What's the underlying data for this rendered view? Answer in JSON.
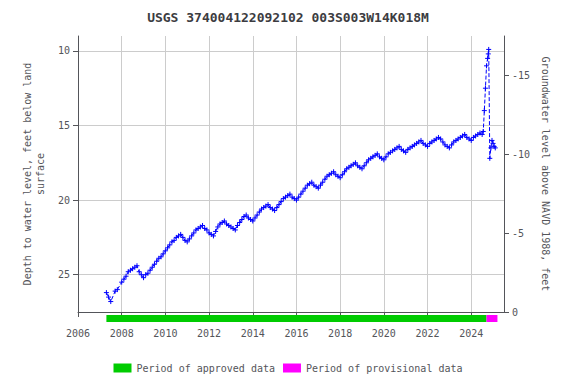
{
  "chart_data": {
    "type": "line",
    "title": "USGS 374004122092102 003S003W14K018M",
    "ylabel": "Depth to water level, feet below land\nsurface",
    "y2label": "Groundwater level above NAVD 1988, feet",
    "xlim": [
      2006,
      2025.5
    ],
    "xticks": [
      2006,
      2008,
      2010,
      2012,
      2014,
      2016,
      2018,
      2020,
      2022,
      2024
    ],
    "ylim": [
      27.5,
      9.0
    ],
    "yticks": [
      10,
      15,
      20,
      25
    ],
    "y2lim": [
      0,
      -17.5
    ],
    "y2ticks": [
      0,
      -5,
      -10,
      -15
    ],
    "grid": true,
    "legend": "bottom",
    "x": [
      2007.3,
      2007.4,
      2007.5,
      2007.7,
      2007.8,
      2008.0,
      2008.1,
      2008.2,
      2008.3,
      2008.4,
      2008.5,
      2008.6,
      2008.7,
      2008.8,
      2008.9,
      2009.0,
      2009.1,
      2009.2,
      2009.3,
      2009.4,
      2009.5,
      2009.6,
      2009.7,
      2009.8,
      2009.9,
      2010.0,
      2010.1,
      2010.2,
      2010.3,
      2010.4,
      2010.5,
      2010.6,
      2010.7,
      2010.8,
      2010.9,
      2011.0,
      2011.1,
      2011.2,
      2011.3,
      2011.4,
      2011.5,
      2011.6,
      2011.7,
      2011.8,
      2011.9,
      2012.0,
      2012.1,
      2012.2,
      2012.3,
      2012.4,
      2012.5,
      2012.6,
      2012.7,
      2012.8,
      2012.9,
      2013.0,
      2013.1,
      2013.2,
      2013.3,
      2013.4,
      2013.5,
      2013.6,
      2013.7,
      2013.8,
      2013.9,
      2014.0,
      2014.1,
      2014.2,
      2014.3,
      2014.4,
      2014.5,
      2014.6,
      2014.7,
      2014.8,
      2014.9,
      2015.0,
      2015.1,
      2015.2,
      2015.3,
      2015.4,
      2015.5,
      2015.6,
      2015.7,
      2015.8,
      2015.9,
      2016.0,
      2016.1,
      2016.2,
      2016.3,
      2016.4,
      2016.5,
      2016.6,
      2016.7,
      2016.8,
      2016.9,
      2017.0,
      2017.1,
      2017.2,
      2017.3,
      2017.4,
      2017.5,
      2017.6,
      2017.7,
      2017.8,
      2017.9,
      2018.0,
      2018.1,
      2018.2,
      2018.3,
      2018.4,
      2018.5,
      2018.6,
      2018.7,
      2018.8,
      2018.9,
      2019.0,
      2019.1,
      2019.2,
      2019.3,
      2019.4,
      2019.5,
      2019.6,
      2019.7,
      2019.8,
      2019.9,
      2020.0,
      2020.1,
      2020.2,
      2020.3,
      2020.4,
      2020.5,
      2020.6,
      2020.7,
      2020.8,
      2020.9,
      2021.0,
      2021.1,
      2021.2,
      2021.3,
      2021.4,
      2021.5,
      2021.6,
      2021.7,
      2021.8,
      2021.9,
      2022.0,
      2022.1,
      2022.2,
      2022.3,
      2022.4,
      2022.5,
      2022.6,
      2022.7,
      2022.8,
      2022.9,
      2023.0,
      2023.1,
      2023.2,
      2023.3,
      2023.4,
      2023.5,
      2023.6,
      2023.7,
      2023.8,
      2023.9,
      2024.0,
      2024.1,
      2024.2,
      2024.3,
      2024.4,
      2024.5,
      2024.55,
      2024.6,
      2024.65,
      2024.7,
      2024.75,
      2024.78,
      2024.8,
      2024.85,
      2024.9,
      2024.95,
      2025.0,
      2025.05,
      2025.1
    ],
    "series": [
      {
        "color": "#0000ff",
        "marker": "plus",
        "line_style": "dashed",
        "values": [
          26.2,
          26.5,
          26.8,
          26.1,
          26.0,
          25.5,
          25.3,
          25.1,
          24.8,
          24.7,
          24.6,
          24.5,
          24.4,
          24.8,
          25.0,
          25.2,
          25.0,
          24.9,
          24.7,
          24.5,
          24.3,
          24.1,
          23.9,
          23.8,
          23.6,
          23.4,
          23.2,
          23.0,
          22.8,
          22.7,
          22.5,
          22.4,
          22.3,
          22.5,
          22.7,
          22.8,
          22.6,
          22.4,
          22.2,
          22.0,
          21.9,
          21.8,
          21.7,
          21.9,
          22.0,
          22.2,
          22.3,
          22.4,
          22.1,
          21.8,
          21.6,
          21.5,
          21.4,
          21.6,
          21.7,
          21.8,
          21.9,
          22.0,
          21.7,
          21.5,
          21.3,
          21.1,
          21.0,
          21.2,
          21.3,
          21.4,
          21.2,
          21.0,
          20.8,
          20.6,
          20.5,
          20.4,
          20.3,
          20.5,
          20.6,
          20.7,
          20.5,
          20.3,
          20.1,
          19.9,
          19.8,
          19.7,
          19.6,
          19.8,
          19.9,
          20.0,
          19.8,
          19.6,
          19.4,
          19.2,
          19.0,
          18.9,
          18.8,
          19.0,
          19.1,
          19.2,
          19.0,
          18.8,
          18.6,
          18.4,
          18.3,
          18.2,
          18.1,
          18.3,
          18.4,
          18.5,
          18.3,
          18.1,
          17.9,
          17.8,
          17.7,
          17.6,
          17.5,
          17.7,
          17.8,
          17.9,
          17.7,
          17.5,
          17.3,
          17.2,
          17.1,
          17.0,
          16.9,
          17.1,
          17.2,
          17.3,
          17.1,
          16.9,
          16.8,
          16.7,
          16.6,
          16.5,
          16.4,
          16.6,
          16.7,
          16.8,
          16.6,
          16.5,
          16.4,
          16.3,
          16.2,
          16.1,
          16.0,
          16.2,
          16.3,
          16.4,
          16.2,
          16.1,
          16.0,
          15.9,
          15.8,
          15.9,
          16.1,
          16.3,
          16.4,
          16.5,
          16.3,
          16.1,
          16.0,
          15.9,
          15.8,
          15.7,
          15.6,
          15.8,
          15.9,
          16.0,
          15.8,
          15.7,
          15.6,
          15.5,
          15.6,
          15.4,
          14.0,
          12.5,
          11.0,
          10.5,
          10.2,
          9.9,
          17.2,
          16.5,
          16.0,
          16.2,
          16.4,
          16.5
        ]
      }
    ],
    "periods": [
      {
        "name": "Period of approved data",
        "start": 2007.3,
        "end": 2024.7,
        "color": "#00cc00"
      },
      {
        "name": "Period of provisional data",
        "start": 2024.7,
        "end": 2025.2,
        "color": "#ff00ff"
      }
    ]
  }
}
